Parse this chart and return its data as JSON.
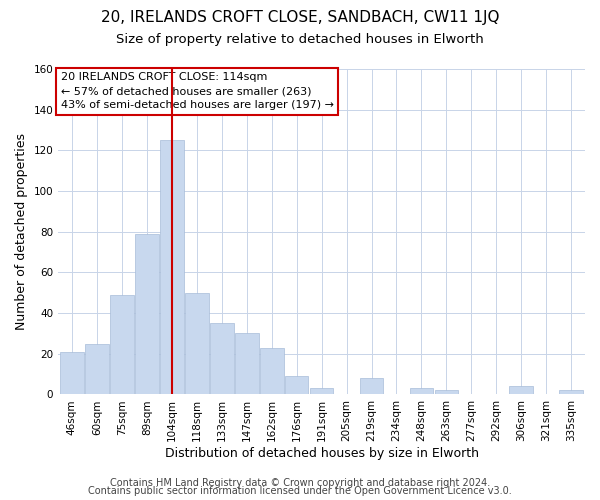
{
  "title1": "20, IRELANDS CROFT CLOSE, SANDBACH, CW11 1JQ",
  "title2": "Size of property relative to detached houses in Elworth",
  "xlabel": "Distribution of detached houses by size in Elworth",
  "ylabel": "Number of detached properties",
  "bar_labels": [
    "46sqm",
    "60sqm",
    "75sqm",
    "89sqm",
    "104sqm",
    "118sqm",
    "133sqm",
    "147sqm",
    "162sqm",
    "176sqm",
    "191sqm",
    "205sqm",
    "219sqm",
    "234sqm",
    "248sqm",
    "263sqm",
    "277sqm",
    "292sqm",
    "306sqm",
    "321sqm",
    "335sqm"
  ],
  "bar_values": [
    21,
    25,
    49,
    79,
    125,
    50,
    35,
    30,
    23,
    9,
    3,
    0,
    8,
    0,
    3,
    2,
    0,
    0,
    4,
    0,
    2
  ],
  "bar_color": "#c8d8ee",
  "bar_edge_color": "#a8bcd8",
  "vline_color": "#cc0000",
  "vline_x_index": 4.5,
  "ylim": [
    0,
    160
  ],
  "yticks": [
    0,
    20,
    40,
    60,
    80,
    100,
    120,
    140,
    160
  ],
  "annotation_title": "20 IRELANDS CROFT CLOSE: 114sqm",
  "annotation_line1": "← 57% of detached houses are smaller (263)",
  "annotation_line2": "43% of semi-detached houses are larger (197) →",
  "annotation_box_color": "#ffffff",
  "annotation_box_edge": "#cc0000",
  "footer1": "Contains HM Land Registry data © Crown copyright and database right 2024.",
  "footer2": "Contains public sector information licensed under the Open Government Licence v3.0.",
  "bg_color": "#ffffff",
  "grid_color": "#c8d4e8",
  "title1_fontsize": 11,
  "title2_fontsize": 9.5,
  "xlabel_fontsize": 9,
  "ylabel_fontsize": 9,
  "annotation_fontsize": 8,
  "tick_fontsize": 7.5,
  "footer_fontsize": 7
}
